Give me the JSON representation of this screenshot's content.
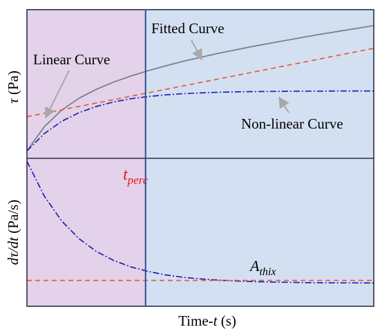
{
  "chart_data": {
    "type": "line",
    "xlabel": "Time-",
    "xlabel_var": "t",
    "xlabel_unit": " (s)",
    "x_ticks": "none",
    "y_ticks": "none",
    "grid": false,
    "legend": "none",
    "phase_split": {
      "label_main": "t",
      "label_sub": "perc",
      "x_fraction": 0.342,
      "left_region_color": "#e3d2e9",
      "right_region_color": "#d3e0f2"
    },
    "panels": [
      {
        "name": "top",
        "ylabel_var": "τ",
        "ylabel_unit": " (Pa)",
        "ylim": [
          0,
          1
        ],
        "series": [
          {
            "name": "Fitted Curve",
            "style": "solid",
            "color": "#7b7f8e",
            "x": [
              0,
              0.05,
              0.1,
              0.15,
              0.2,
              0.25,
              0.3,
              0.35,
              0.4,
              0.45,
              0.5,
              0.55,
              0.6,
              0.65,
              0.7,
              0.75,
              0.8,
              0.85,
              0.9,
              0.95,
              1.0
            ],
            "y": [
              0.05,
              0.212,
              0.324,
              0.404,
              0.464,
              0.513,
              0.554,
              0.59,
              0.622,
              0.652,
              0.679,
              0.705,
              0.729,
              0.752,
              0.774,
              0.795,
              0.816,
              0.836,
              0.855,
              0.874,
              0.893
            ]
          },
          {
            "name": "Linear Curve",
            "style": "dashed",
            "color": "#e55b3c",
            "x": [
              0,
              1.0
            ],
            "y": [
              0.28,
              0.74
            ]
          },
          {
            "name": "Non-linear Curve",
            "style": "dashdot",
            "color": "#1f1fb4",
            "x": [
              0,
              0.05,
              0.1,
              0.15,
              0.2,
              0.25,
              0.3,
              0.35,
              0.4,
              0.45,
              0.5,
              0.55,
              0.6,
              0.65,
              0.7,
              0.75,
              0.8,
              0.85,
              0.9,
              0.95,
              1.0
            ],
            "y": [
              0.05,
              0.166,
              0.249,
              0.307,
              0.349,
              0.379,
              0.401,
              0.416,
              0.427,
              0.435,
              0.44,
              0.444,
              0.447,
              0.449,
              0.45,
              0.451,
              0.452,
              0.452,
              0.453,
              0.453,
              0.453
            ]
          }
        ],
        "annotations": [
          {
            "text": "Fitted Curve",
            "points_to": "Fitted Curve"
          },
          {
            "text": "Linear Curve",
            "points_to": "Linear Curve"
          },
          {
            "text": "Non-linear Curve",
            "points_to": "Non-linear Curve"
          }
        ]
      },
      {
        "name": "bottom",
        "ylabel_parts": [
          "dτ/dt",
          "  (Pa/s)"
        ],
        "ylim": [
          0,
          1
        ],
        "series": [
          {
            "name": "",
            "style": "dashdot",
            "color": "#1f1fb4",
            "x": [
              0,
              0.05,
              0.1,
              0.15,
              0.2,
              0.25,
              0.3,
              0.35,
              0.4,
              0.45,
              0.5,
              0.55,
              0.6,
              0.65,
              0.7,
              0.75,
              0.8,
              0.85,
              0.9,
              0.95,
              1.0
            ],
            "y": [
              0.98,
              0.745,
              0.577,
              0.457,
              0.371,
              0.31,
              0.266,
              0.235,
              0.212,
              0.196,
              0.185,
              0.177,
              0.171,
              0.167,
              0.164,
              0.162,
              0.16,
              0.159,
              0.158,
              0.158,
              0.157
            ]
          },
          {
            "name": "",
            "style": "dashed",
            "color": "#e55b3c",
            "x": [
              0,
              1.0
            ],
            "y": [
              0.175,
              0.175
            ]
          }
        ],
        "annotations": [
          {
            "text_main": "A",
            "text_sub": "thix",
            "refers_to": "horizontal dashed line"
          }
        ]
      }
    ]
  }
}
